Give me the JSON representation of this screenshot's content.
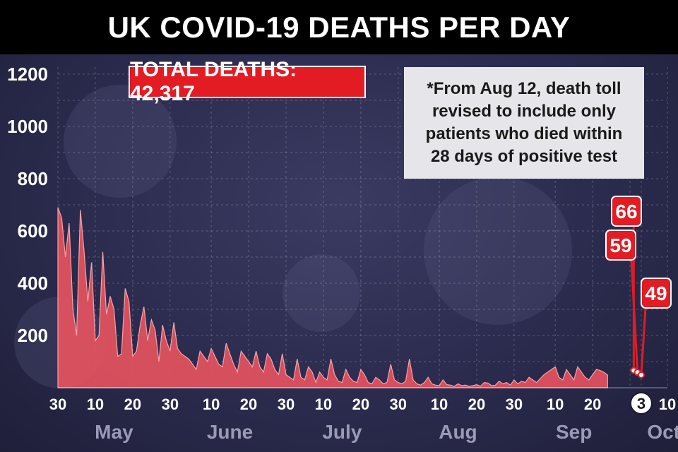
{
  "title": "UK COVID-19 DEATHS PER DAY",
  "total_badge": "TOTAL DEATHS: 42,317",
  "note": "*From Aug 12, death toll\nrevised to include only\npatients who died within\n28 days of positive test",
  "colors": {
    "area_fill": "#e8535f",
    "area_stroke": "#f6a3a8",
    "accent_red": "#e31b23",
    "title_bar": "#000000",
    "background": "#2a2a4c",
    "note_box": "#e6e6ea"
  },
  "chart_data": {
    "type": "area",
    "title": "UK COVID-19 DEATHS PER DAY",
    "xlabel": "",
    "ylabel": "",
    "ylim": [
      0,
      1200
    ],
    "yticks": [
      200,
      400,
      600,
      800,
      1000,
      1200
    ],
    "grid": true,
    "x_start_date": "2020-04-30",
    "x_end_date": "2020-10-10",
    "x_tick_labels": [
      "30",
      "10",
      "20",
      "30",
      "10",
      "20",
      "30",
      "10",
      "20",
      "30",
      "10",
      "20",
      "30",
      "10",
      "20",
      "",
      "3",
      "10"
    ],
    "x_tick_dates": [
      "2020-04-30",
      "2020-05-10",
      "2020-05-20",
      "2020-05-30",
      "2020-06-10",
      "2020-06-20",
      "2020-06-30",
      "2020-07-10",
      "2020-07-20",
      "2020-07-30",
      "2020-08-10",
      "2020-08-20",
      "2020-08-30",
      "2020-09-10",
      "2020-09-20",
      "2020-09-30",
      "2020-10-03",
      "2020-10-10"
    ],
    "highlighted_tick": "3",
    "months": [
      {
        "label": "May",
        "date": "2020-05-15"
      },
      {
        "label": "June",
        "date": "2020-06-15"
      },
      {
        "label": "July",
        "date": "2020-07-15"
      },
      {
        "label": "Aug",
        "date": "2020-08-15"
      },
      {
        "label": "Sep",
        "date": "2020-09-15"
      },
      {
        "label": "Oct",
        "date": "2020-10-09"
      }
    ],
    "series": [
      {
        "name": "Deaths",
        "values": [
          690,
          650,
          500,
          630,
          300,
          200,
          680,
          520,
          330,
          480,
          180,
          200,
          520,
          280,
          350,
          300,
          120,
          130,
          380,
          330,
          120,
          140,
          240,
          310,
          180,
          260,
          220,
          100,
          240,
          180,
          140,
          250,
          150,
          130,
          120,
          110,
          90,
          70,
          140,
          120,
          100,
          150,
          120,
          90,
          80,
          170,
          130,
          90,
          60,
          140,
          120,
          100,
          80,
          140,
          80,
          60,
          130,
          110,
          70,
          50,
          130,
          50,
          40,
          30,
          110,
          40,
          30,
          80,
          60,
          20,
          60,
          40,
          30,
          110,
          50,
          25,
          20,
          70,
          40,
          25,
          20,
          70,
          50,
          20,
          15,
          40,
          30,
          15,
          20,
          90,
          30,
          20,
          15,
          25,
          110,
          30,
          15,
          10,
          20,
          40,
          15,
          10,
          8,
          30,
          12,
          10,
          5,
          15,
          8,
          10,
          5,
          8,
          12,
          6,
          20,
          18,
          8,
          10,
          25,
          15,
          20,
          10,
          30,
          15,
          25,
          20,
          40,
          30,
          20,
          35,
          50,
          60,
          70,
          80,
          40,
          30,
          70,
          50,
          30,
          80,
          60,
          40,
          30,
          50,
          70,
          66,
          59,
          49
        ]
      }
    ],
    "callouts": [
      {
        "label": "66",
        "value": 66,
        "date": "2020-10-01"
      },
      {
        "label": "59",
        "value": 59,
        "date": "2020-10-02"
      },
      {
        "label": "49",
        "value": 49,
        "date": "2020-10-03"
      }
    ]
  }
}
